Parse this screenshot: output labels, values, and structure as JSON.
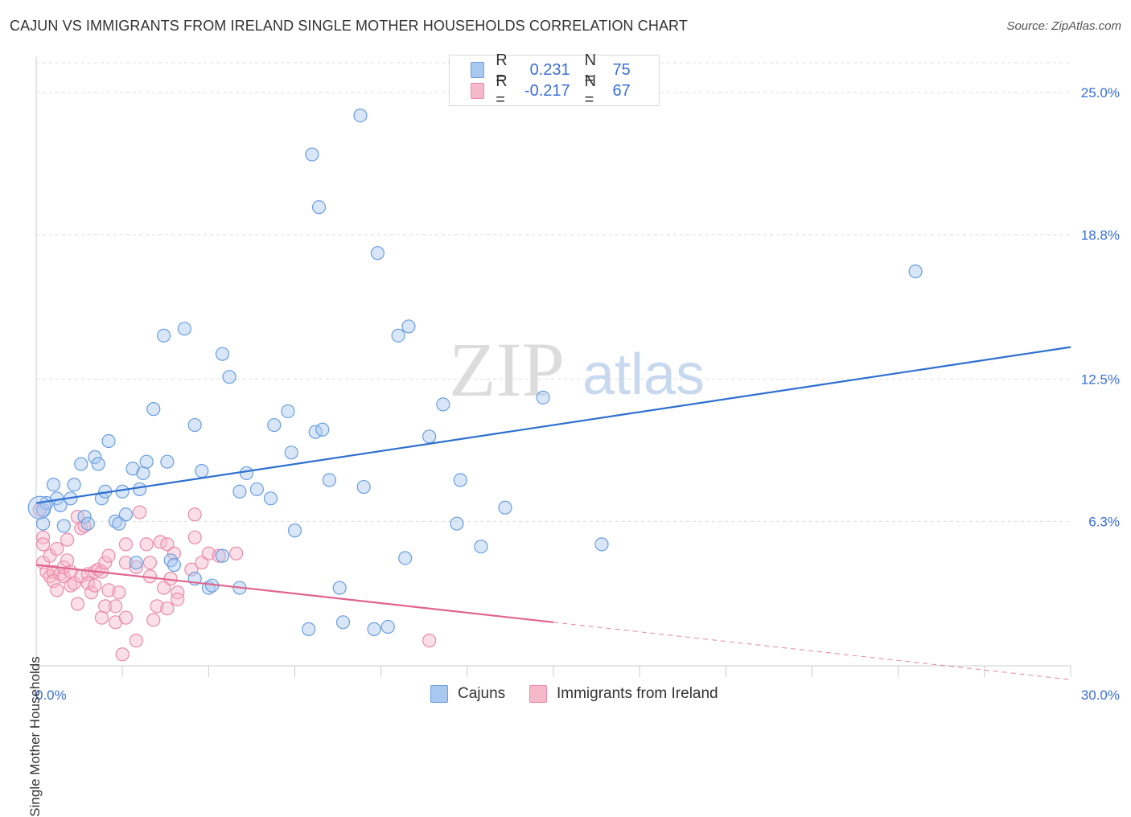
{
  "title": "CAJUN VS IMMIGRANTS FROM IRELAND SINGLE MOTHER HOUSEHOLDS CORRELATION CHART",
  "source": "Source: ZipAtlas.com",
  "watermark": {
    "zip": "ZIP",
    "atlas": "atlas"
  },
  "legend_top": [
    {
      "r_label": "R =",
      "r_value": "0.231",
      "n_label": "N =",
      "n_value": "75"
    },
    {
      "r_label": "R =",
      "r_value": "-0.217",
      "n_label": "N =",
      "n_value": "67"
    }
  ],
  "colors": {
    "blue_fill": "#a9c8f0",
    "blue_stroke": "#6a9ee0",
    "blue_line": "#2e6fd0",
    "pink_fill": "#f6b9cc",
    "pink_stroke": "#ec8aa9",
    "pink_line": "#e0648f",
    "tick_text": "#3a6fd8",
    "grid": "#dddddd"
  },
  "chart_data": {
    "type": "scatter",
    "title": "CAJUN VS IMMIGRANTS FROM IRELAND SINGLE MOTHER HOUSEHOLDS CORRELATION CHART",
    "xlabel": "",
    "ylabel": "Single Mother Households",
    "xlim": [
      0,
      30
    ],
    "ylim": [
      0,
      26.3
    ],
    "x_tick_labels": [
      "0.0%",
      "30.0%"
    ],
    "y_ticks": [
      6.3,
      12.5,
      18.8,
      25.0
    ],
    "y_tick_labels": [
      "6.3%",
      "12.5%",
      "18.8%",
      "25.0%"
    ],
    "series": [
      {
        "name": "Cajuns",
        "color": "blue",
        "r": 0.231,
        "n": 75,
        "trend": {
          "x0": 0.0,
          "y0": 7.1,
          "x1": 30.0,
          "y1": 13.9
        },
        "points": [
          [
            0.2,
            6.8
          ],
          [
            0.2,
            6.2
          ],
          [
            0.3,
            7.1
          ],
          [
            0.5,
            7.9
          ],
          [
            0.6,
            7.3
          ],
          [
            0.7,
            7.0
          ],
          [
            0.8,
            6.1
          ],
          [
            1.0,
            7.3
          ],
          [
            1.1,
            7.9
          ],
          [
            1.3,
            8.8
          ],
          [
            1.4,
            6.5
          ],
          [
            1.5,
            6.2
          ],
          [
            1.7,
            9.1
          ],
          [
            1.8,
            8.8
          ],
          [
            1.9,
            7.3
          ],
          [
            2.0,
            7.6
          ],
          [
            2.1,
            9.8
          ],
          [
            2.3,
            6.3
          ],
          [
            2.4,
            6.2
          ],
          [
            2.5,
            7.6
          ],
          [
            2.6,
            6.6
          ],
          [
            2.8,
            8.6
          ],
          [
            2.9,
            4.5
          ],
          [
            3.0,
            7.7
          ],
          [
            3.1,
            8.4
          ],
          [
            3.2,
            8.9
          ],
          [
            3.4,
            11.2
          ],
          [
            3.7,
            14.4
          ],
          [
            3.8,
            8.9
          ],
          [
            3.9,
            4.6
          ],
          [
            4.0,
            4.4
          ],
          [
            4.3,
            14.7
          ],
          [
            4.6,
            10.5
          ],
          [
            4.6,
            3.8
          ],
          [
            4.8,
            8.5
          ],
          [
            5.0,
            3.4
          ],
          [
            5.1,
            3.5
          ],
          [
            5.4,
            4.8
          ],
          [
            5.4,
            13.6
          ],
          [
            5.6,
            12.6
          ],
          [
            5.9,
            7.6
          ],
          [
            5.9,
            3.4
          ],
          [
            6.1,
            8.4
          ],
          [
            6.4,
            7.7
          ],
          [
            6.8,
            7.3
          ],
          [
            6.9,
            10.5
          ],
          [
            7.3,
            11.1
          ],
          [
            7.4,
            9.3
          ],
          [
            7.5,
            5.9
          ],
          [
            7.9,
            1.6
          ],
          [
            8.0,
            22.3
          ],
          [
            8.1,
            10.2
          ],
          [
            8.2,
            20.0
          ],
          [
            8.3,
            10.3
          ],
          [
            8.5,
            8.1
          ],
          [
            8.8,
            3.4
          ],
          [
            8.9,
            1.9
          ],
          [
            9.4,
            24.0
          ],
          [
            9.5,
            7.8
          ],
          [
            9.8,
            1.6
          ],
          [
            9.9,
            18.0
          ],
          [
            10.2,
            1.7
          ],
          [
            10.5,
            14.4
          ],
          [
            10.7,
            4.7
          ],
          [
            10.8,
            14.8
          ],
          [
            11.4,
            10.0
          ],
          [
            11.8,
            11.4
          ],
          [
            12.2,
            6.2
          ],
          [
            12.3,
            8.1
          ],
          [
            12.9,
            5.2
          ],
          [
            13.6,
            6.9
          ],
          [
            14.7,
            11.7
          ],
          [
            16.4,
            5.3
          ],
          [
            25.5,
            17.2
          ],
          [
            0.1,
            6.9
          ]
        ]
      },
      {
        "name": "Immigrants from Ireland",
        "color": "pink",
        "r": -0.217,
        "n": 67,
        "trend": {
          "x0": 0.0,
          "y0": 4.4,
          "x1": 15.0,
          "y1": 1.9
        },
        "trend_dashed": {
          "x0": 15.0,
          "y0": 1.9,
          "x1": 30.0,
          "y1": -0.6
        },
        "points": [
          [
            0.1,
            6.8
          ],
          [
            0.2,
            5.6
          ],
          [
            0.2,
            5.3
          ],
          [
            0.2,
            4.5
          ],
          [
            0.3,
            4.1
          ],
          [
            0.4,
            3.9
          ],
          [
            0.4,
            4.8
          ],
          [
            0.5,
            4.1
          ],
          [
            0.5,
            3.7
          ],
          [
            0.6,
            5.1
          ],
          [
            0.6,
            3.3
          ],
          [
            0.7,
            4.0
          ],
          [
            0.8,
            3.9
          ],
          [
            0.8,
            4.3
          ],
          [
            0.9,
            4.6
          ],
          [
            0.9,
            5.5
          ],
          [
            1.0,
            3.5
          ],
          [
            1.0,
            4.1
          ],
          [
            1.1,
            3.6
          ],
          [
            1.2,
            2.7
          ],
          [
            1.2,
            6.5
          ],
          [
            1.3,
            6.0
          ],
          [
            1.3,
            3.9
          ],
          [
            1.4,
            6.1
          ],
          [
            1.5,
            4.0
          ],
          [
            1.5,
            3.6
          ],
          [
            1.6,
            3.2
          ],
          [
            1.7,
            4.1
          ],
          [
            1.7,
            3.5
          ],
          [
            1.8,
            4.2
          ],
          [
            1.9,
            2.1
          ],
          [
            1.9,
            4.1
          ],
          [
            2.0,
            2.6
          ],
          [
            2.0,
            4.5
          ],
          [
            2.1,
            4.8
          ],
          [
            2.1,
            3.3
          ],
          [
            2.3,
            2.6
          ],
          [
            2.3,
            1.9
          ],
          [
            2.4,
            3.2
          ],
          [
            2.5,
            0.5
          ],
          [
            2.6,
            5.3
          ],
          [
            2.6,
            4.5
          ],
          [
            2.6,
            2.1
          ],
          [
            2.9,
            1.1
          ],
          [
            2.9,
            4.3
          ],
          [
            3.0,
            6.7
          ],
          [
            3.2,
            5.3
          ],
          [
            3.3,
            4.5
          ],
          [
            3.3,
            3.9
          ],
          [
            3.4,
            2.0
          ],
          [
            3.5,
            2.6
          ],
          [
            3.6,
            5.4
          ],
          [
            3.7,
            3.4
          ],
          [
            3.8,
            5.3
          ],
          [
            3.8,
            2.5
          ],
          [
            3.9,
            3.8
          ],
          [
            4.0,
            4.9
          ],
          [
            4.1,
            3.2
          ],
          [
            4.1,
            2.9
          ],
          [
            4.5,
            4.2
          ],
          [
            4.6,
            6.6
          ],
          [
            4.6,
            5.6
          ],
          [
            4.8,
            4.5
          ],
          [
            5.0,
            4.9
          ],
          [
            5.3,
            4.8
          ],
          [
            5.8,
            4.9
          ],
          [
            11.4,
            1.1
          ]
        ]
      }
    ],
    "bottom_legend": [
      "Cajuns",
      "Immigrants from Ireland"
    ]
  }
}
